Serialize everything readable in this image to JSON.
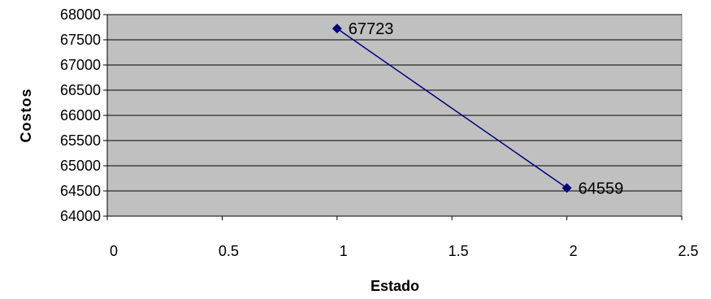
{
  "chart_data": {
    "type": "scatter",
    "title": "",
    "xlabel": "Estado",
    "ylabel": "Costos",
    "xlim": [
      0,
      2.5
    ],
    "ylim": [
      64000,
      68000
    ],
    "x_ticks": [
      "0",
      "0.5",
      "1",
      "1.5",
      "2",
      "2.5"
    ],
    "y_ticks": [
      "64000",
      "64500",
      "65000",
      "65500",
      "66000",
      "66500",
      "67000",
      "67500",
      "68000"
    ],
    "grid": "horizontal",
    "legend": "none",
    "series": [
      {
        "points": [
          {
            "x": 1,
            "y": 67723,
            "label": "67723"
          },
          {
            "x": 2,
            "y": 64559,
            "label": "64559"
          }
        ],
        "color": "#000080",
        "marker": "diamond",
        "connected": true
      }
    ],
    "plot_background": "#c0c0c0"
  }
}
